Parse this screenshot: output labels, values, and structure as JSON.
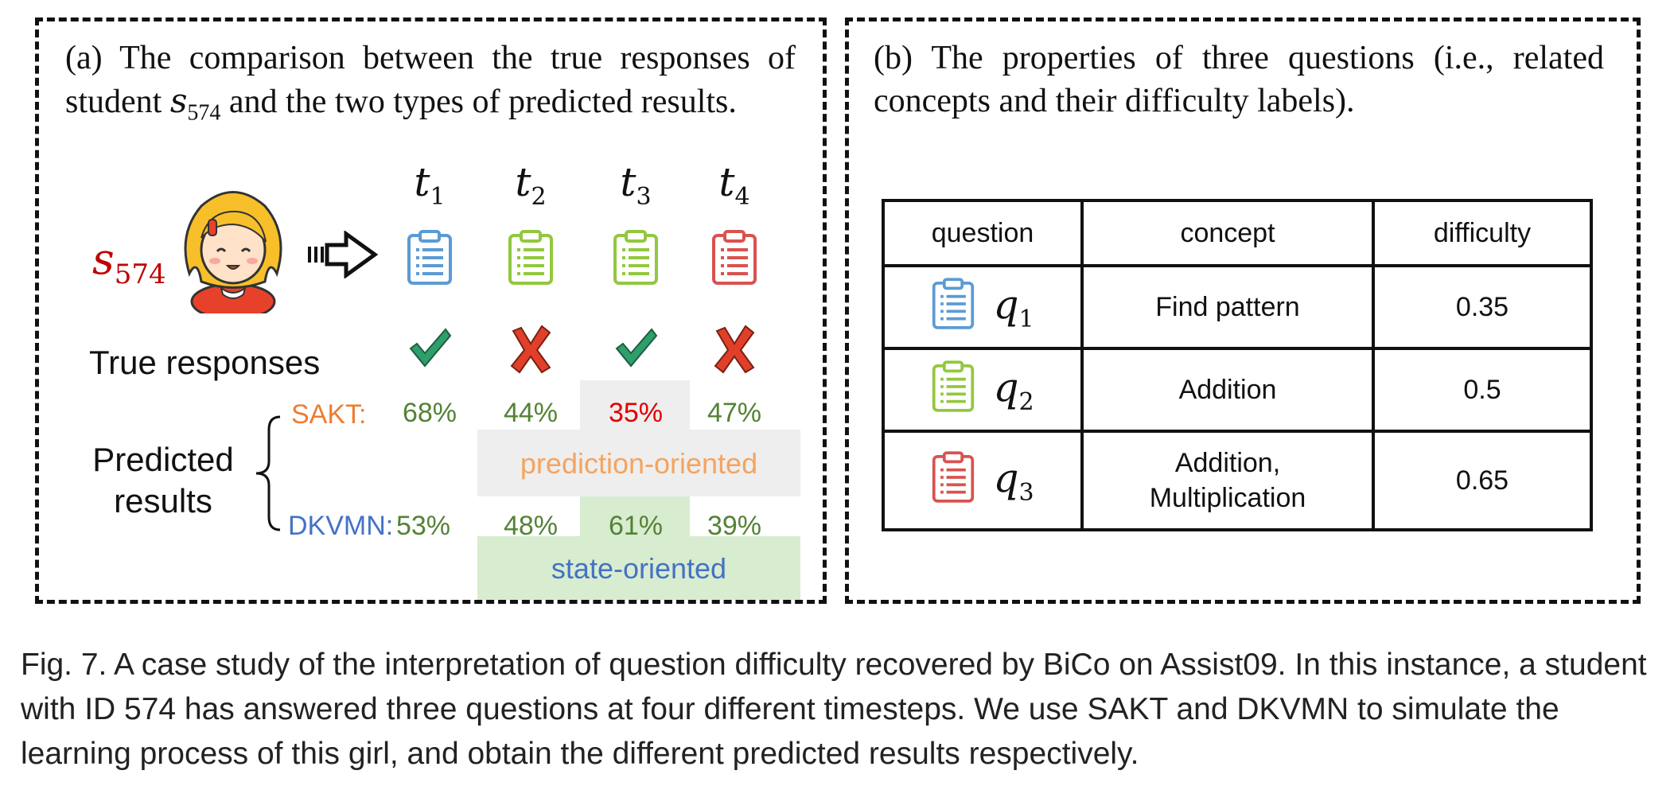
{
  "panel_a": {
    "text_prefix": "(a) The comparison between the true responses of student ",
    "student_var": "s",
    "student_sub": "574",
    "text_suffix": " and the two types of predicted results.",
    "timesteps": [
      {
        "var": "t",
        "sub": "1"
      },
      {
        "var": "t",
        "sub": "2"
      },
      {
        "var": "t",
        "sub": "3"
      },
      {
        "var": "t",
        "sub": "4"
      }
    ],
    "student_label_var": "s",
    "student_label_sub": "574",
    "question_colors": [
      "#5b9bd5",
      "#92c83e",
      "#92c83e",
      "#d9534f"
    ],
    "true_responses_label": "True responses",
    "true_responses": [
      "correct",
      "wrong",
      "correct",
      "wrong"
    ],
    "predicted_label_line1": "Predicted",
    "predicted_label_line2": "results",
    "sakt": {
      "label": "SAKT:",
      "values": [
        "68%",
        "44%",
        "35%",
        "47%"
      ],
      "highlight_index": 2
    },
    "dkvmn": {
      "label": "DKVMN:",
      "values": [
        "53%",
        "48%",
        "61%",
        "39%"
      ]
    },
    "prediction_band_label": "prediction-oriented",
    "state_band_label": "state-oriented",
    "colors": {
      "sakt_label": "#ed7d31",
      "dkvmn_label": "#4472c4",
      "pct_normal": "#548235",
      "pct_highlight": "#e00000",
      "prediction_band": "#eeeeee",
      "state_band": "#d8ecd0",
      "band_text_prediction": "#f4a460",
      "band_text_state": "#4472c4",
      "check": "#2e9e6b",
      "cross": "#e0402a",
      "student_red": "#c00000"
    }
  },
  "panel_b": {
    "text": "(b) The properties of three questions (i.e., related concepts and their difficulty labels).",
    "table": {
      "headers": [
        "question",
        "concept",
        "difficulty"
      ],
      "rows": [
        {
          "q_var": "q",
          "q_sub": "1",
          "icon_color": "#5b9bd5",
          "concept_line1": "Find pattern",
          "concept_line2": "",
          "difficulty": "0.35"
        },
        {
          "q_var": "q",
          "q_sub": "2",
          "icon_color": "#92c83e",
          "concept_line1": "Addition",
          "concept_line2": "",
          "difficulty": "0.5"
        },
        {
          "q_var": "q",
          "q_sub": "3",
          "icon_color": "#d9534f",
          "concept_line1": "Addition,",
          "concept_line2": "Multiplication",
          "difficulty": "0.65"
        }
      ]
    }
  },
  "caption": "Fig. 7.  A case study of the interpretation of question difficulty recovered by BiCo on Assist09. In this instance, a student with ID 574 has answered three questions at four different timesteps. We use SAKT and DKVMN to simulate the learning process of this girl, and obtain the different predicted results respectively."
}
